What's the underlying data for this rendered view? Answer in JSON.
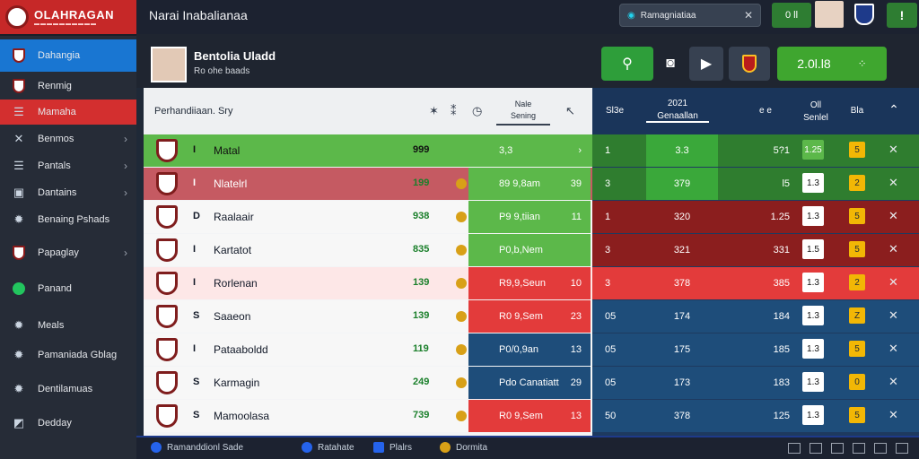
{
  "app": {
    "logo_text": "OLAHRAGAN",
    "title": "Narai Inabalianaa"
  },
  "topbar": {
    "search_value": "Ramagniatiaa",
    "score": "0 ll"
  },
  "sidebar": {
    "items": [
      {
        "label": "Dahangia",
        "icon": "shield-icon",
        "active": "blue"
      },
      {
        "label": "Renmig",
        "icon": "shield-icon",
        "active": "none"
      },
      {
        "label": "Mamaha",
        "icon": "list-icon",
        "active": "red"
      },
      {
        "label": "Benmos",
        "icon": "tools-icon",
        "active": "none",
        "chevron": true
      },
      {
        "label": "Pantals",
        "icon": "list-icon",
        "active": "none",
        "chevron": true
      },
      {
        "label": "Dantains",
        "icon": "image-icon",
        "active": "none",
        "chevron": true
      },
      {
        "label": "Benaing Pshads",
        "icon": "gear-icon",
        "active": "none"
      },
      {
        "label": "Papaglay",
        "icon": "shield-icon",
        "active": "none",
        "chevron": true
      },
      {
        "label": "Panand",
        "icon": "green-dot-icon",
        "active": "none"
      },
      {
        "label": "Meals",
        "icon": "gear-icon",
        "active": "none"
      },
      {
        "label": "Pamaniada Gblag",
        "icon": "gear-icon",
        "active": "none"
      },
      {
        "label": "Dentilamuas",
        "icon": "gear-icon",
        "active": "none"
      },
      {
        "label": "Dedday",
        "icon": "chart-icon",
        "active": "none"
      }
    ]
  },
  "header": {
    "name": "Bentolia Uladd",
    "sub": "Ro ohe baads",
    "score": "2.0l.l8"
  },
  "left_table": {
    "filter_label": "Perhandiiaan. Sry",
    "role_label": "Nale",
    "role_sub": "Sening",
    "rows": [
      {
        "num": "I",
        "name": "Matal",
        "val": "999",
        "pos": "3,3",
        "right": "›",
        "bg": "green",
        "cell": "green"
      },
      {
        "num": "I",
        "name": "Nlatelrl",
        "val": "199",
        "pos": "89 9,8am",
        "right": "39",
        "bg": "red",
        "cell": "green"
      },
      {
        "num": "D",
        "name": "Raalaair",
        "val": "938",
        "pos": "P9 9,tiian",
        "right": "11",
        "bg": "white",
        "cell": "green"
      },
      {
        "num": "I",
        "name": "Kartatot",
        "val": "835",
        "pos": "P0,b,Nem",
        "right": "",
        "bg": "white",
        "cell": "green"
      },
      {
        "num": "I",
        "name": "Rorlenan",
        "val": "139",
        "pos": "R9,9,Seun",
        "right": "10",
        "bg": "pink",
        "cell": "red"
      },
      {
        "num": "S",
        "name": "Saaeon",
        "val": "139",
        "pos": "R0 9,Sem",
        "right": "23",
        "bg": "white",
        "cell": "red"
      },
      {
        "num": "I",
        "name": "Pataaboldd",
        "val": "119",
        "pos": "P0/0,9an",
        "right": "13",
        "bg": "white",
        "cell": "blue"
      },
      {
        "num": "S",
        "name": "Karmagin",
        "val": "249",
        "pos": "Pdo Canatiatt",
        "right": "29",
        "bg": "white",
        "cell": "blue"
      },
      {
        "num": "S",
        "name": "Mamoolasa",
        "val": "739",
        "pos": "R0 9,Sem",
        "right": "13",
        "bg": "white",
        "cell": "red"
      }
    ]
  },
  "right_table": {
    "headers": {
      "a": "Sl3e",
      "b_top": "2021",
      "b_sub": "Genaallan",
      "c": "e e",
      "d_top": "Oll",
      "d_sub": "Senlel",
      "e": "Bla"
    },
    "rows": [
      {
        "a": "1",
        "b": "3.3",
        "c": "5?1",
        "d": "1.25",
        "e": "5",
        "bg": "green",
        "dbg": "green"
      },
      {
        "a": "3",
        "b": "379",
        "c": "l5",
        "d": "1.3",
        "e": "2",
        "bg": "green",
        "dbg": "white"
      },
      {
        "a": "1",
        "b": "320",
        "c": "1.25",
        "d": "1.3",
        "e": "5",
        "bg": "red",
        "dbg": "white"
      },
      {
        "a": "3",
        "b": "321",
        "c": "331",
        "d": "1.5",
        "e": "5",
        "bg": "red",
        "dbg": "white"
      },
      {
        "a": "3",
        "b": "378",
        "c": "385",
        "d": "1.3",
        "e": "2",
        "bg": "brightred",
        "dbg": "white"
      },
      {
        "a": "05",
        "b": "174",
        "c": "184",
        "d": "1.3",
        "e": "Z",
        "bg": "blue",
        "dbg": "white"
      },
      {
        "a": "05",
        "b": "175",
        "c": "185",
        "d": "1.3",
        "e": "5",
        "bg": "blue",
        "dbg": "white"
      },
      {
        "a": "05",
        "b": "173",
        "c": "183",
        "d": "1.3",
        "e": "0",
        "bg": "blue",
        "dbg": "white"
      },
      {
        "a": "50",
        "b": "378",
        "c": "125",
        "d": "1.3",
        "e": "5",
        "bg": "blue",
        "dbg": "white"
      }
    ]
  },
  "statusbar": {
    "s1": "Ramanddionl Sade",
    "s2": "Ratahate",
    "s3": "Plalrs",
    "s4": "Dormita"
  }
}
